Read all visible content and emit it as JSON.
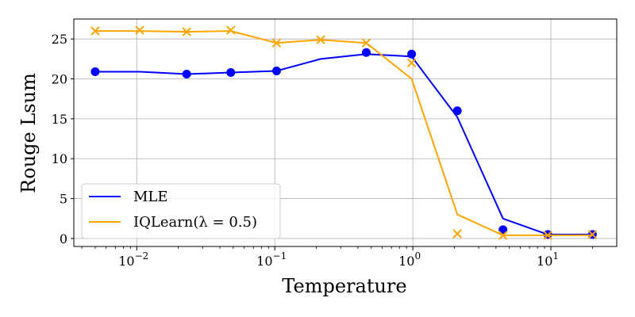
{
  "chart_data": {
    "type": "line",
    "title": "",
    "xlabel": "Temperature",
    "ylabel": "Rouge Lsum",
    "xscale": "log",
    "xlim": [
      0.0035,
      30
    ],
    "ylim": [
      -1,
      27.5
    ],
    "grid": true,
    "legend_position": "lower-left",
    "xticks": [
      {
        "value": 0.01,
        "base": "10",
        "exp": "−2"
      },
      {
        "value": 0.1,
        "base": "10",
        "exp": "−1"
      },
      {
        "value": 1,
        "base": "10",
        "exp": "0"
      },
      {
        "value": 10,
        "base": "10",
        "exp": "1"
      }
    ],
    "yticks": [
      {
        "value": 0,
        "label": "0"
      },
      {
        "value": 5,
        "label": "5"
      },
      {
        "value": 10,
        "label": "10"
      },
      {
        "value": 15,
        "label": "15"
      },
      {
        "value": 20,
        "label": "20"
      },
      {
        "value": 25,
        "label": "25"
      }
    ],
    "series": [
      {
        "name": "MLE",
        "color": "#0000ff",
        "marker": "circle",
        "line": {
          "x": [
            0.005,
            0.0105,
            0.023,
            0.048,
            0.103,
            0.215,
            0.46,
            0.98,
            2.1,
            4.5,
            9.5,
            20
          ],
          "y": [
            20.9,
            20.9,
            20.6,
            20.8,
            21.0,
            22.5,
            23.1,
            22.8,
            15.2,
            2.5,
            0.5,
            0.5
          ]
        },
        "points": {
          "x": [
            0.005,
            0.023,
            0.048,
            0.103,
            0.46,
            0.98,
            2.1,
            4.5,
            9.5,
            20
          ],
          "y": [
            20.9,
            20.6,
            20.8,
            21.0,
            23.3,
            23.1,
            16.0,
            1.1,
            0.5,
            0.5
          ]
        }
      },
      {
        "name": "IQLearn(λ = 0.5)",
        "color": "#ffa500",
        "marker": "x",
        "line": {
          "x": [
            0.005,
            0.0105,
            0.023,
            0.048,
            0.103,
            0.215,
            0.46,
            0.98,
            2.1,
            4.5,
            9.5,
            20
          ],
          "y": [
            26.0,
            26.0,
            25.9,
            26.0,
            24.5,
            24.9,
            24.5,
            20.0,
            3.0,
            0.4,
            0.4,
            0.4
          ]
        },
        "points": {
          "x": [
            0.005,
            0.0105,
            0.023,
            0.048,
            0.103,
            0.215,
            0.46,
            0.98,
            2.1,
            4.5,
            9.5,
            20
          ],
          "y": [
            26.0,
            26.1,
            25.9,
            26.1,
            24.5,
            24.9,
            24.5,
            22.0,
            0.6,
            0.4,
            0.4,
            0.5
          ]
        }
      }
    ]
  }
}
